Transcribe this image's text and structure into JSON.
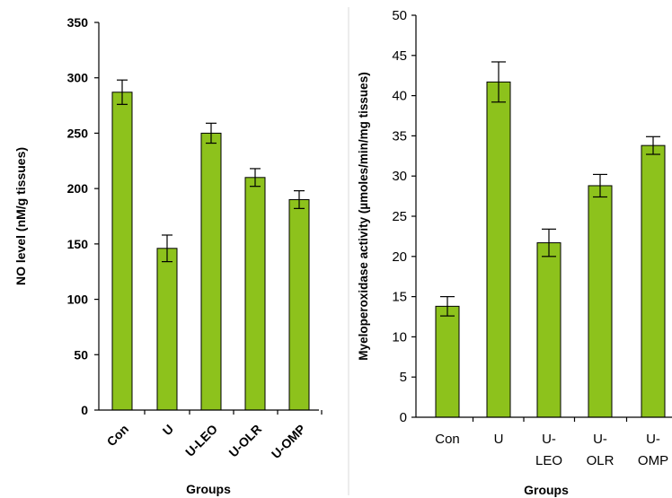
{
  "chart_data": [
    {
      "type": "bar",
      "categories": [
        "Con",
        "U",
        "U-LEO",
        "U-OLR",
        "U-OMP"
      ],
      "values": [
        287,
        146,
        250,
        210,
        190
      ],
      "errors": [
        11,
        12,
        9,
        8,
        8
      ],
      "xlabel": "Groups",
      "ylabel": "NO level (nM/g tissues)",
      "ylim": [
        0,
        350
      ],
      "yticks": [
        0,
        50,
        100,
        150,
        200,
        250,
        300,
        350
      ],
      "bar_color": "#8dc21c",
      "grid": false
    },
    {
      "type": "bar",
      "categories": [
        "Con",
        "U",
        "U-LEO",
        "U-OLR",
        "U-OMP"
      ],
      "category_lines": [
        [
          "Con"
        ],
        [
          "U"
        ],
        [
          "U-",
          "LEO"
        ],
        [
          "U-",
          "OLR"
        ],
        [
          "U-",
          "OMP"
        ]
      ],
      "values": [
        13.8,
        41.7,
        21.7,
        28.8,
        33.8
      ],
      "errors": [
        1.2,
        2.5,
        1.7,
        1.4,
        1.1
      ],
      "xlabel": "Groups",
      "ylabel": "Myeloperoxidase activity (µmoles/min/mg tissues)",
      "ylim": [
        0,
        50
      ],
      "yticks": [
        0,
        5,
        10,
        15,
        20,
        25,
        30,
        35,
        40,
        45,
        50
      ],
      "bar_color": "#8dc21c",
      "grid": false
    }
  ]
}
